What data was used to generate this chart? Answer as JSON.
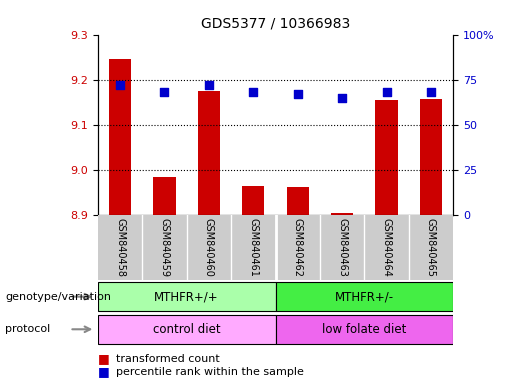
{
  "title": "GDS5377 / 10366983",
  "samples": [
    "GSM840458",
    "GSM840459",
    "GSM840460",
    "GSM840461",
    "GSM840462",
    "GSM840463",
    "GSM840464",
    "GSM840465"
  ],
  "bar_values": [
    9.245,
    8.985,
    9.175,
    8.965,
    8.962,
    8.905,
    9.155,
    9.158
  ],
  "percentile_values": [
    72,
    68,
    72,
    68,
    67,
    65,
    68,
    68
  ],
  "ylim_left": [
    8.9,
    9.3
  ],
  "ylim_right": [
    0,
    100
  ],
  "yticks_left": [
    8.9,
    9.0,
    9.1,
    9.2,
    9.3
  ],
  "yticks_right": [
    0,
    25,
    50,
    75,
    100
  ],
  "ytick_labels_right": [
    "0",
    "25",
    "50",
    "75",
    "100%"
  ],
  "bar_color": "#cc0000",
  "dot_color": "#0000cc",
  "bar_bottom": 8.9,
  "genotype_groups": [
    {
      "label": "MTHFR+/+",
      "start": 0,
      "end": 4,
      "color": "#aaffaa"
    },
    {
      "label": "MTHFR+/-",
      "start": 4,
      "end": 8,
      "color": "#44ee44"
    }
  ],
  "protocol_groups": [
    {
      "label": "control diet",
      "start": 0,
      "end": 4,
      "color": "#ffaaff"
    },
    {
      "label": "low folate diet",
      "start": 4,
      "end": 8,
      "color": "#ee66ee"
    }
  ],
  "background_color": "#ffffff",
  "tick_area_bg": "#cccccc",
  "label_genotype": "genotype/variation",
  "label_protocol": "protocol",
  "legend_red": "transformed count",
  "legend_blue": "percentile rank within the sample"
}
